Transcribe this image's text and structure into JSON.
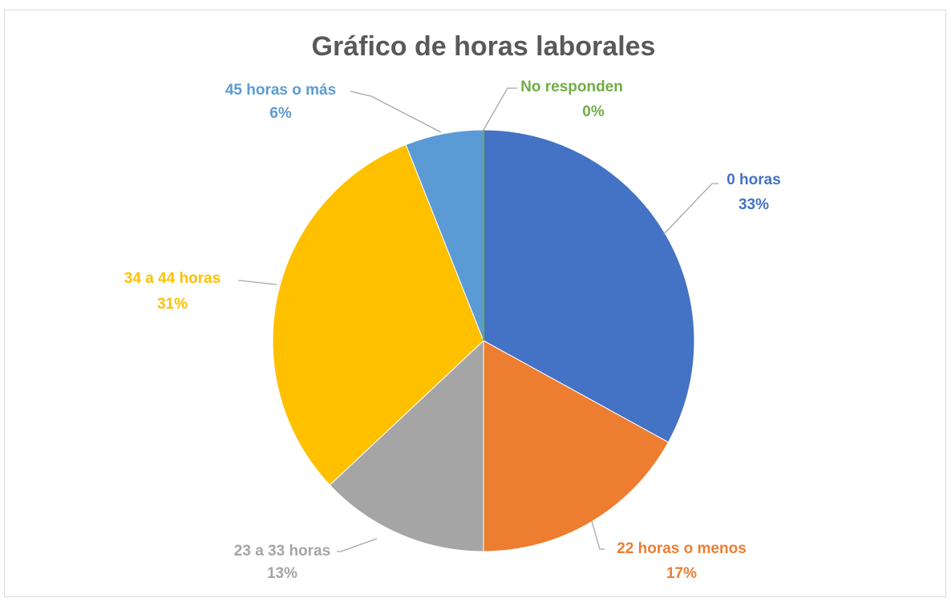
{
  "chart_data": {
    "type": "pie",
    "title": "Gráfico de horas laborales",
    "categories": [
      "0 horas",
      "22 horas o menos",
      "23 a 33 horas",
      "34 a 44 horas",
      "45 horas o más",
      "No responden"
    ],
    "values": [
      33,
      17,
      13,
      31,
      6,
      0
    ],
    "value_labels": [
      "33%",
      "17%",
      "13%",
      "31%",
      "6%",
      "0%"
    ],
    "colors": [
      "#4472c4",
      "#ed7d31",
      "#a5a5a5",
      "#ffc000",
      "#5b9bd5",
      "#70ad47"
    ]
  }
}
